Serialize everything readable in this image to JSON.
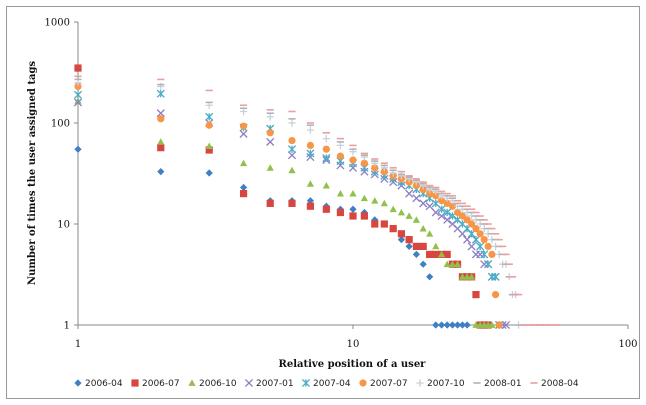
{
  "chart_data": {
    "type": "scatter",
    "xlabel": "Relative position of a user",
    "ylabel": "Number of times the user assigned tags",
    "x_scale": "log",
    "y_scale": "log",
    "xlim": [
      1,
      100
    ],
    "ylim": [
      1,
      1000
    ],
    "x_ticks": [
      1,
      10,
      100
    ],
    "x_tick_labels": [
      "1",
      "10",
      "100"
    ],
    "y_ticks": [
      1,
      10,
      100,
      1000
    ],
    "y_tick_labels": [
      "1",
      "10",
      "100",
      "1000"
    ],
    "grid": false,
    "legend_position": "bottom",
    "series": [
      {
        "name": "2006-04",
        "marker": "diamond",
        "color": "#3f7fc4",
        "x": [
          1,
          2,
          3,
          4,
          5,
          6,
          7,
          8,
          9,
          10,
          11,
          12,
          13,
          14,
          15,
          16,
          17,
          18,
          19,
          20,
          21,
          22,
          23,
          24,
          25,
          26
        ],
        "y": [
          55,
          33,
          32,
          23,
          17,
          17,
          17,
          15,
          14,
          14,
          13,
          11,
          10,
          9,
          7,
          6,
          5,
          4,
          3,
          1,
          1,
          1,
          1,
          1,
          1,
          1
        ]
      },
      {
        "name": "2006-07",
        "marker": "square",
        "color": "#d9453f",
        "x": [
          1,
          2,
          3,
          4,
          5,
          6,
          7,
          8,
          9,
          10,
          11,
          12,
          13,
          14,
          15,
          16,
          17,
          18,
          19,
          20,
          21,
          22,
          23,
          24,
          25,
          26,
          27,
          28,
          29,
          30,
          31
        ],
        "y": [
          350,
          57,
          54,
          20,
          16,
          16,
          15,
          14,
          13,
          12,
          12,
          10,
          10,
          9,
          8,
          7,
          6,
          6,
          5,
          5,
          5,
          5,
          4,
          4,
          3,
          3,
          3,
          2,
          1,
          1,
          1
        ]
      },
      {
        "name": "2006-10",
        "marker": "triangle",
        "color": "#8fc24a",
        "x": [
          1,
          2,
          3,
          4,
          5,
          6,
          7,
          8,
          9,
          10,
          11,
          12,
          13,
          14,
          15,
          16,
          17,
          18,
          19,
          20,
          21,
          22,
          23,
          24,
          25,
          26,
          27,
          28,
          29,
          30,
          31,
          32
        ],
        "y": [
          165,
          65,
          59,
          40,
          36,
          34,
          25,
          24,
          20,
          20,
          18,
          17,
          16,
          14,
          13,
          12,
          11,
          9,
          8,
          6,
          5,
          4,
          4,
          4,
          3,
          3,
          3,
          1,
          1,
          1,
          1,
          1
        ]
      },
      {
        "name": "2007-01",
        "marker": "x",
        "color": "#8e7cc3",
        "x": [
          1,
          2,
          3,
          4,
          5,
          6,
          7,
          8,
          9,
          10,
          11,
          12,
          13,
          14,
          15,
          16,
          17,
          18,
          19,
          20,
          21,
          22,
          23,
          24,
          25,
          26,
          27,
          28,
          29,
          30,
          31,
          32,
          33,
          34,
          35,
          36
        ],
        "y": [
          160,
          125,
          100,
          78,
          65,
          48,
          46,
          43,
          38,
          36,
          33,
          31,
          28,
          26,
          24,
          20,
          18,
          16,
          15,
          13,
          12,
          11,
          10,
          9,
          8,
          7,
          6,
          5,
          5,
          4,
          4,
          3,
          3,
          1,
          1,
          1
        ]
      },
      {
        "name": "2007-04",
        "marker": "star",
        "color": "#4bacc6",
        "x": [
          1,
          2,
          3,
          4,
          5,
          6,
          7,
          8,
          9,
          10,
          11,
          12,
          13,
          14,
          15,
          16,
          17,
          18,
          19,
          20,
          21,
          22,
          23,
          24,
          25,
          26,
          27,
          28,
          29,
          30,
          31,
          32,
          33,
          34
        ],
        "y": [
          190,
          195,
          115,
          90,
          88,
          55,
          50,
          45,
          42,
          40,
          36,
          33,
          30,
          28,
          26,
          24,
          22,
          20,
          18,
          16,
          14,
          13,
          12,
          11,
          10,
          9,
          8,
          7,
          6,
          5,
          4,
          3,
          3,
          1
        ]
      },
      {
        "name": "2007-07",
        "marker": "circle",
        "color": "#f79646",
        "x": [
          1,
          2,
          3,
          4,
          5,
          6,
          7,
          8,
          9,
          10,
          11,
          12,
          13,
          14,
          15,
          16,
          17,
          18,
          19,
          20,
          21,
          22,
          23,
          24,
          25,
          26,
          27,
          28,
          29,
          30,
          31,
          32,
          33,
          34
        ],
        "y": [
          230,
          110,
          95,
          93,
          80,
          67,
          60,
          55,
          47,
          43,
          40,
          36,
          33,
          30,
          28,
          26,
          24,
          22,
          20,
          19,
          17,
          16,
          15,
          13,
          12,
          11,
          10,
          9,
          8,
          7,
          6,
          5,
          2,
          1
        ]
      },
      {
        "name": "2007-10",
        "marker": "plus",
        "color": "#c7d0dc",
        "x": [
          1,
          2,
          3,
          4,
          5,
          6,
          7,
          8,
          9,
          10,
          11,
          12,
          13,
          14,
          15,
          16,
          17,
          18,
          19,
          20,
          21,
          22,
          23,
          24,
          25,
          26,
          27,
          28,
          29,
          30,
          31,
          32,
          33,
          34,
          35,
          36,
          37,
          38,
          39,
          40
        ],
        "y": [
          250,
          230,
          150,
          130,
          115,
          100,
          85,
          70,
          60,
          52,
          46,
          40,
          36,
          32,
          30,
          28,
          26,
          24,
          22,
          21,
          19,
          18,
          17,
          15,
          14,
          13,
          12,
          11,
          10,
          9,
          8,
          7,
          6,
          5,
          4,
          4,
          3,
          2,
          2,
          1
        ]
      },
      {
        "name": "2008-01",
        "marker": "dash",
        "color": "#b3b3b3",
        "x": [
          1,
          2,
          3,
          4,
          5,
          6,
          7,
          8,
          9,
          10,
          11,
          12,
          13,
          14,
          15,
          16,
          17,
          18,
          19,
          20,
          21,
          22,
          23,
          24,
          25,
          26,
          27,
          28,
          29,
          30,
          31,
          32,
          33,
          34,
          35,
          36,
          37,
          38,
          39,
          40,
          42,
          44,
          46,
          48,
          50,
          52,
          55
        ],
        "y": [
          270,
          240,
          160,
          140,
          125,
          110,
          95,
          80,
          65,
          55,
          48,
          42,
          38,
          34,
          31,
          29,
          27,
          25,
          23,
          22,
          20,
          19,
          18,
          16,
          15,
          14,
          13,
          12,
          11,
          10,
          9,
          8,
          7,
          6,
          5,
          4,
          3,
          2,
          2,
          1,
          1,
          1,
          1,
          1,
          1,
          1,
          1
        ]
      },
      {
        "name": "2008-04",
        "marker": "dash",
        "color": "#e8a0a0",
        "x": [
          1,
          2,
          3,
          4,
          5,
          6,
          7,
          8,
          9,
          10,
          11,
          12,
          13,
          14,
          15,
          16,
          17,
          18,
          19,
          20,
          21,
          22,
          23,
          24,
          25,
          26,
          27,
          28,
          29,
          30,
          31,
          32,
          33,
          34,
          35,
          36,
          37,
          38,
          39,
          40,
          42,
          44,
          46,
          48,
          50,
          52,
          55
        ],
        "y": [
          290,
          270,
          210,
          150,
          135,
          130,
          100,
          80,
          70,
          60,
          50,
          44,
          40,
          36,
          33,
          30,
          28,
          26,
          24,
          23,
          21,
          20,
          19,
          17,
          16,
          15,
          14,
          13,
          12,
          11,
          10,
          9,
          8,
          7,
          6,
          5,
          4,
          3,
          2,
          2,
          1,
          1,
          1,
          1,
          1,
          1,
          1
        ]
      }
    ]
  }
}
